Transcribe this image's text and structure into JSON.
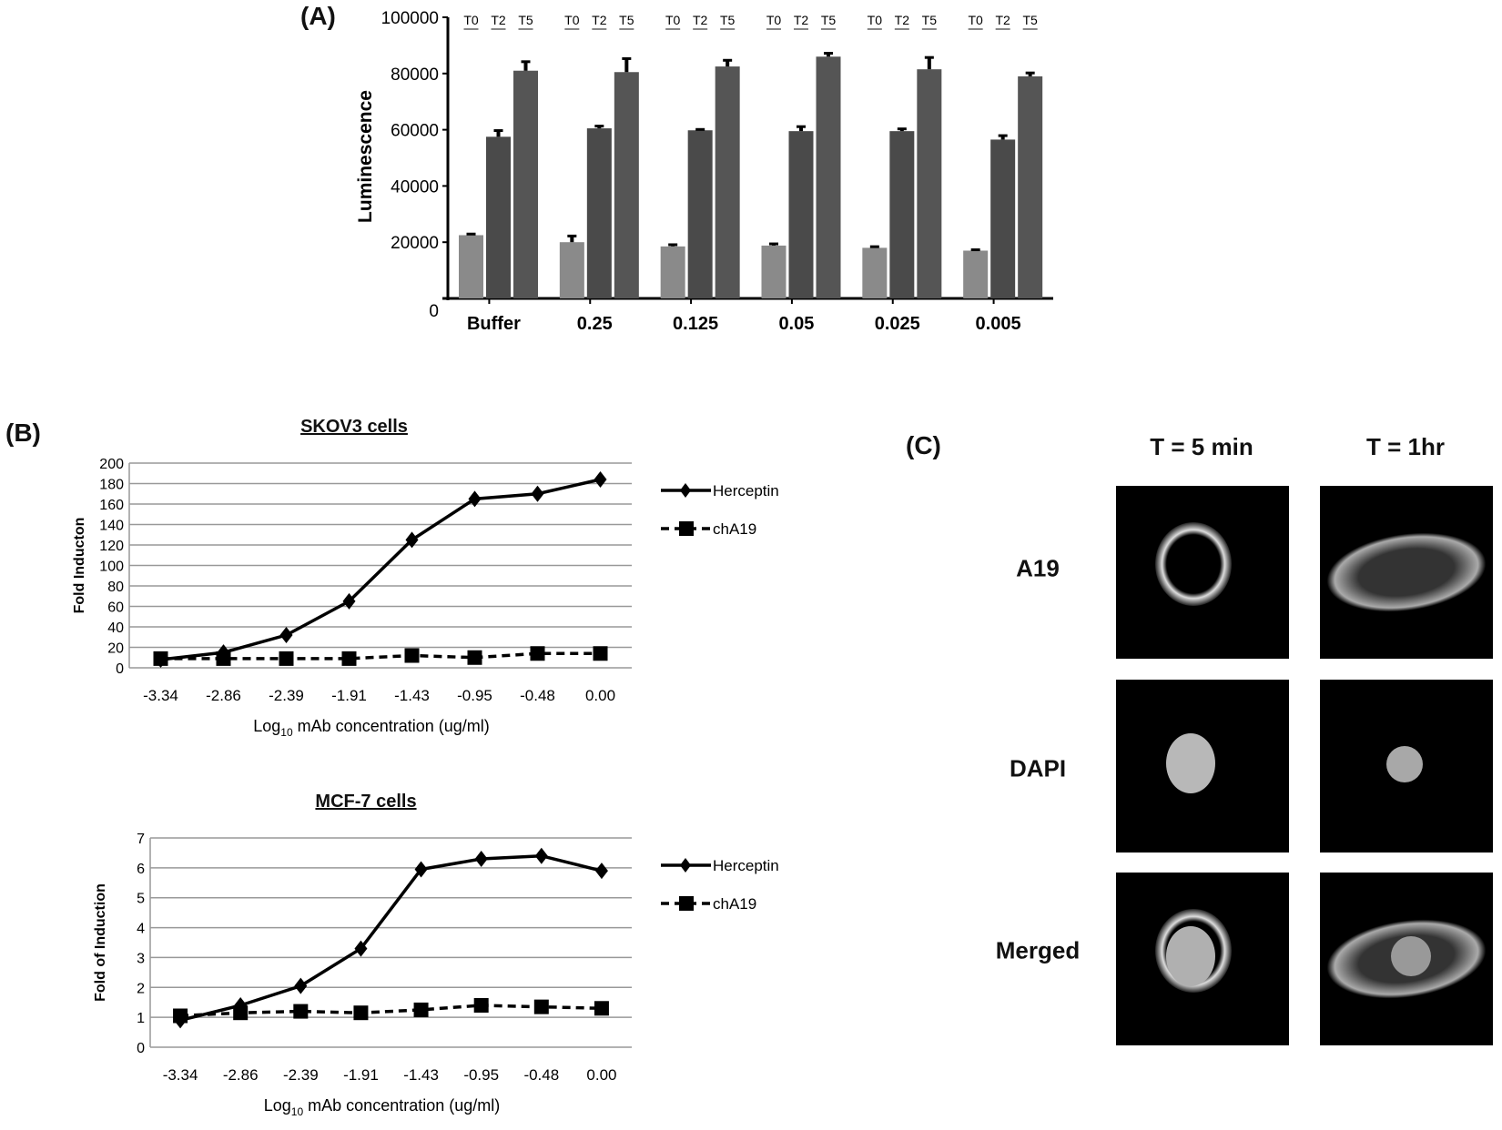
{
  "panel_labels": {
    "a": "(A)",
    "b": "(B)",
    "c": "(C)"
  },
  "chart_data": [
    {
      "type": "bar",
      "panel": "(A)",
      "title": "",
      "xlabel": "",
      "ylabel": "Luminescence",
      "ylim": [
        0,
        100000
      ],
      "yticks": [
        "0",
        "20000",
        "40000",
        "60000",
        "80000",
        "100000"
      ],
      "categories": [
        "Buffer",
        "0.25",
        "0.125",
        "0.05",
        "0.025",
        "0.005"
      ],
      "group_labels": [
        "T0",
        "T2",
        "T5"
      ],
      "series": [
        {
          "name": "T0",
          "color": "#8a8a8a",
          "values": [
            22500,
            20000,
            18500,
            18800,
            18000,
            17000
          ],
          "errors": [
            400,
            2200,
            600,
            600,
            400,
            300
          ]
        },
        {
          "name": "T2",
          "color": "#4a4a4a",
          "values": [
            57500,
            60500,
            59800,
            59500,
            59500,
            56500
          ],
          "errors": [
            2200,
            800,
            300,
            1600,
            800,
            1400
          ]
        },
        {
          "name": "T5",
          "color": "#555555",
          "values": [
            81000,
            80500,
            82500,
            86000,
            81500,
            79000
          ],
          "errors": [
            3200,
            4800,
            2200,
            1200,
            4200,
            1200
          ]
        }
      ],
      "grid": false
    },
    {
      "type": "line",
      "panel": "(B)",
      "title": "SKOV3 cells",
      "xlabel": "Log10 mAb concentration  (ug/ml)",
      "xlabel_parts": [
        "Log",
        "10",
        " mAb concentration  (ug/ml)"
      ],
      "ylabel": "Fold Inducton",
      "ylim": [
        0,
        200
      ],
      "yticks": [
        "0",
        "20",
        "40",
        "60",
        "80",
        "100",
        "120",
        "140",
        "160",
        "180",
        "200"
      ],
      "categories": [
        "-3.34",
        "-2.86",
        "-2.39",
        "-1.91",
        "-1.43",
        "-0.95",
        "-0.48",
        "0.00"
      ],
      "series": [
        {
          "name": "Herceptin",
          "style": "solid",
          "marker": "diamond",
          "values": [
            8,
            15,
            32,
            65,
            125,
            165,
            170,
            184
          ]
        },
        {
          "name": "chA19",
          "style": "dashed",
          "marker": "square",
          "values": [
            9,
            9,
            9,
            9,
            12,
            10,
            14,
            14
          ]
        }
      ],
      "grid": true,
      "legend": "right"
    },
    {
      "type": "line",
      "panel": "(B)",
      "title": "MCF-7 cells",
      "xlabel": "Log10 mAb concentration  (ug/ml)",
      "xlabel_parts": [
        "Log",
        "10",
        " mAb concentration  (ug/ml)"
      ],
      "ylabel": "Fold of Induction",
      "ylim": [
        0,
        7
      ],
      "yticks": [
        "0",
        "1",
        "2",
        "3",
        "4",
        "5",
        "6",
        "7"
      ],
      "categories": [
        "-3.34",
        "-2.86",
        "-2.39",
        "-1.91",
        "-1.43",
        "-0.95",
        "-0.48",
        "0.00"
      ],
      "series": [
        {
          "name": "Herceptin",
          "style": "solid",
          "marker": "diamond",
          "values": [
            0.9,
            1.4,
            2.05,
            3.3,
            5.95,
            6.3,
            6.4,
            5.9
          ]
        },
        {
          "name": "chA19",
          "style": "dashed",
          "marker": "square",
          "values": [
            1.05,
            1.15,
            1.2,
            1.15,
            1.25,
            1.4,
            1.35,
            1.3
          ]
        }
      ],
      "grid": true,
      "legend": "right"
    }
  ],
  "microscopy": {
    "columns": [
      "T = 5 min",
      "T = 1hr"
    ],
    "rows": [
      "A19",
      "DAPI",
      "Merged"
    ]
  }
}
